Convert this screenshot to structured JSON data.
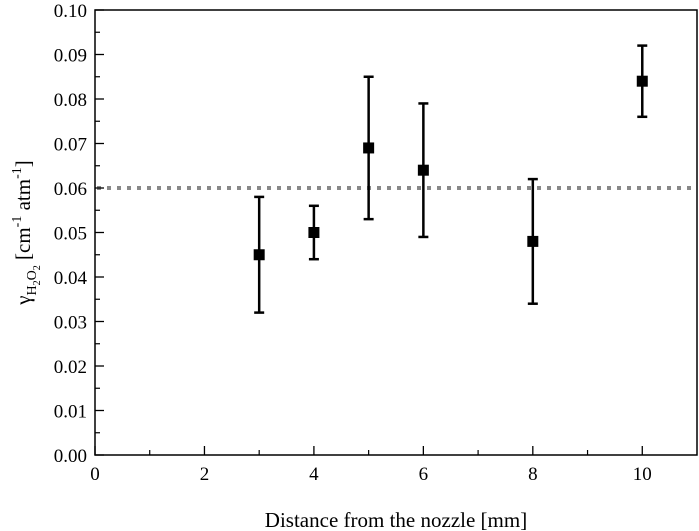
{
  "chart_data": {
    "type": "scatter",
    "xlabel": "Distance from the nozzle [mm]",
    "ylabel": {
      "symbol": "γ",
      "sub_main": "H",
      "sub_2a": "2",
      "sub_O": "O",
      "sub_2b": "2",
      "unit_open": " [cm",
      "exp1": "-1",
      "unit_mid": " atm",
      "exp2": "-1",
      "unit_close": "]"
    },
    "xlim": [
      0,
      11
    ],
    "ylim": [
      0,
      0.1
    ],
    "x_ticks": [
      0,
      2,
      4,
      6,
      8,
      10
    ],
    "x_tick_labels": [
      "0",
      "2",
      "4",
      "6",
      "8",
      "10"
    ],
    "y_ticks": [
      0,
      0.01,
      0.02,
      0.03,
      0.04,
      0.05,
      0.06,
      0.07,
      0.08,
      0.09,
      0.1
    ],
    "y_tick_labels": [
      "0.00",
      "0.01",
      "0.02",
      "0.03",
      "0.04",
      "0.05",
      "0.06",
      "0.07",
      "0.08",
      "0.09",
      "0.10"
    ],
    "grid": false,
    "marker": "square",
    "marker_color": "#000000",
    "reference_line": {
      "y": 0.06,
      "style": "dotted",
      "color": "#888888"
    },
    "points": [
      {
        "x": 3,
        "y": 0.045,
        "low": 0.032,
        "high": 0.058
      },
      {
        "x": 4,
        "y": 0.05,
        "low": 0.044,
        "high": 0.056
      },
      {
        "x": 5,
        "y": 0.069,
        "low": 0.053,
        "high": 0.085
      },
      {
        "x": 6,
        "y": 0.064,
        "low": 0.049,
        "high": 0.079
      },
      {
        "x": 8,
        "y": 0.048,
        "low": 0.034,
        "high": 0.062
      },
      {
        "x": 10,
        "y": 0.084,
        "low": 0.076,
        "high": 0.092
      }
    ]
  }
}
